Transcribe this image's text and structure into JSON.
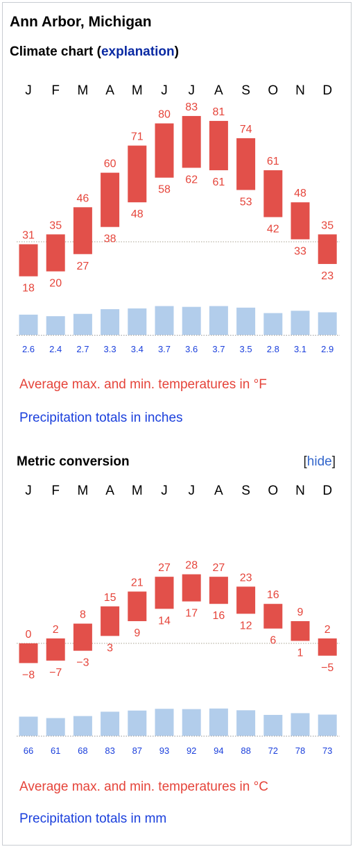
{
  "title": "Ann Arbor, Michigan",
  "subtitle_prefix": "Climate chart (",
  "subtitle_link": "explanation",
  "subtitle_suffix": ")",
  "metric_title": "Metric conversion",
  "hide_link": {
    "open": "[",
    "label": "hide",
    "close": "]"
  },
  "legend_imperial": {
    "temp": "Average max. and min. temperatures in °F",
    "precip": "Precipitation totals in inches"
  },
  "legend_metric": {
    "temp": "Average max. and min. temperatures in °C",
    "precip": "Precipitation totals in mm"
  },
  "colors": {
    "temp_bar": "#e2504a",
    "temp_text": "#e5443a",
    "precip_bar": "#b2cdeb",
    "precip_text": "#1a3fdc",
    "zero_line": "#a8a290"
  },
  "chart_data": [
    {
      "type": "bar",
      "title": "Climate chart",
      "categories": [
        "J",
        "F",
        "M",
        "A",
        "M",
        "J",
        "J",
        "A",
        "S",
        "O",
        "N",
        "D"
      ],
      "series": [
        {
          "name": "Average max. temperatures in °F",
          "values": [
            31,
            35,
            46,
            60,
            71,
            80,
            83,
            81,
            74,
            61,
            48,
            35
          ]
        },
        {
          "name": "Average min. temperatures in °F",
          "values": [
            18,
            20,
            27,
            38,
            48,
            58,
            62,
            61,
            53,
            42,
            33,
            23
          ]
        },
        {
          "name": "Precipitation totals in inches",
          "values": [
            2.6,
            2.4,
            2.7,
            3.3,
            3.4,
            3.7,
            3.6,
            3.7,
            3.5,
            2.8,
            3.1,
            2.9
          ]
        }
      ],
      "reference_line": 32
    },
    {
      "type": "bar",
      "title": "Metric conversion",
      "categories": [
        "J",
        "F",
        "M",
        "A",
        "M",
        "J",
        "J",
        "A",
        "S",
        "O",
        "N",
        "D"
      ],
      "series": [
        {
          "name": "Average max. temperatures in °C",
          "values": [
            "0",
            "2",
            "8",
            "15",
            "21",
            "27",
            "28",
            "27",
            "23",
            "16",
            "9",
            "2"
          ]
        },
        {
          "name": "Average min. temperatures in °C",
          "values": [
            "−8",
            "−7",
            "−3",
            "3",
            "9",
            "14",
            "17",
            "16",
            "12",
            "6",
            "1",
            "−5"
          ]
        },
        {
          "name": "Precipitation totals in mm",
          "values": [
            66,
            61,
            68,
            83,
            87,
            93,
            92,
            94,
            88,
            72,
            78,
            73
          ]
        }
      ],
      "reference_line": 0
    }
  ]
}
